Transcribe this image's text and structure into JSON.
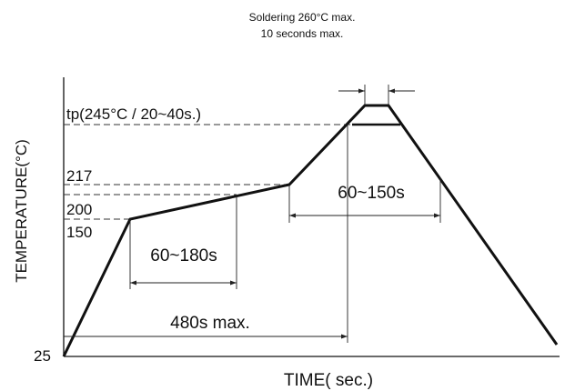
{
  "header": {
    "line1": "Soldering 260°C max.",
    "line2": "10 seconds max."
  },
  "axes": {
    "y_label": "TEMPERATURE(°C)",
    "x_label": "TIME( sec.)",
    "origin_label": "25"
  },
  "levels": {
    "tp_label": "tp(245°C / 20~40s.)",
    "t217": "217",
    "t200": "200",
    "t150": "150"
  },
  "intervals": {
    "preheat": "60~180s",
    "above_liquidus": "60~150s",
    "total": "480s max."
  }
}
